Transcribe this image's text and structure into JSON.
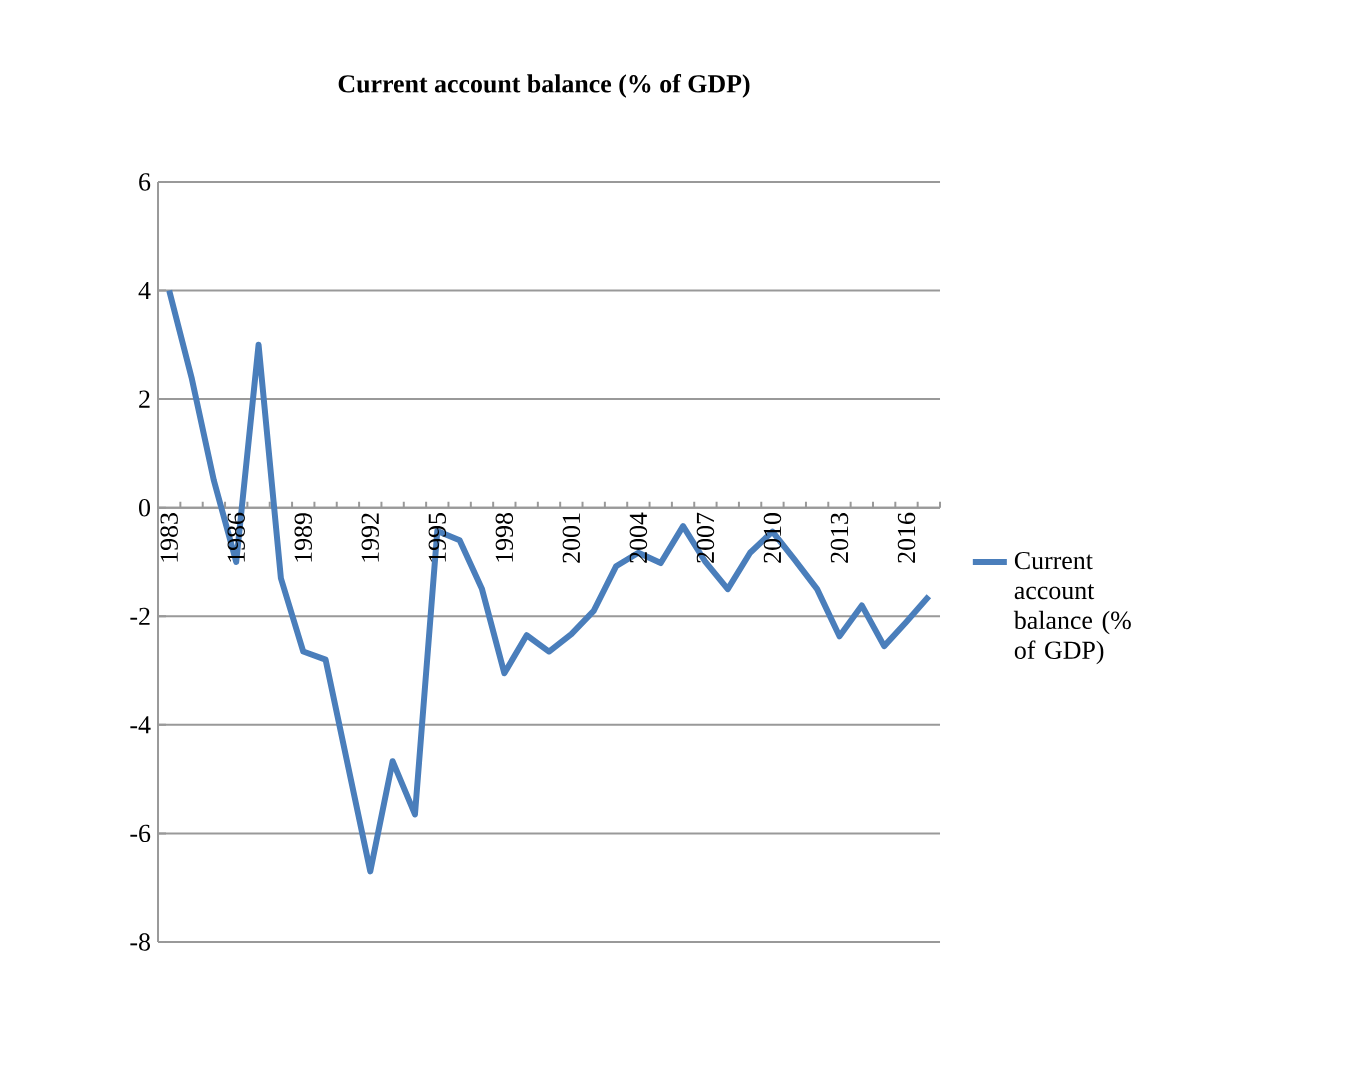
{
  "chart_data": {
    "type": "line",
    "title": "Current account balance (% of GDP)",
    "categories": [
      "1983",
      null,
      null,
      "1986",
      null,
      null,
      "1989",
      null,
      null,
      "1992",
      null,
      null,
      "1995",
      null,
      null,
      "1998",
      null,
      null,
      "2001",
      null,
      null,
      "2004",
      null,
      null,
      "2007",
      null,
      null,
      "2010",
      null,
      null,
      "2013",
      null,
      null,
      "2016",
      null
    ],
    "series": [
      {
        "name": "Current account balance (% of GDP)",
        "color": "#4a7ebb",
        "values": [
          4.0,
          2.4,
          0.5,
          -1.0,
          3.0,
          -1.3,
          -2.65,
          -2.8,
          -4.75,
          -6.7,
          -4.67,
          -5.65,
          -0.43,
          -0.6,
          -1.5,
          -3.05,
          -2.35,
          -2.65,
          -2.33,
          -1.9,
          -1.08,
          -0.83,
          -1.02,
          -0.34,
          -1.0,
          -1.5,
          -0.83,
          -0.44,
          -0.96,
          -1.5,
          -2.37,
          -1.8,
          -2.55,
          -2.1,
          -1.63
        ]
      }
    ],
    "ylim": [
      -8,
      6
    ],
    "yticks": [
      -8,
      -6,
      -4,
      -2,
      0,
      2,
      4,
      6
    ],
    "grid": "y",
    "legend": "right",
    "marker": "none",
    "line_style": "solid"
  }
}
